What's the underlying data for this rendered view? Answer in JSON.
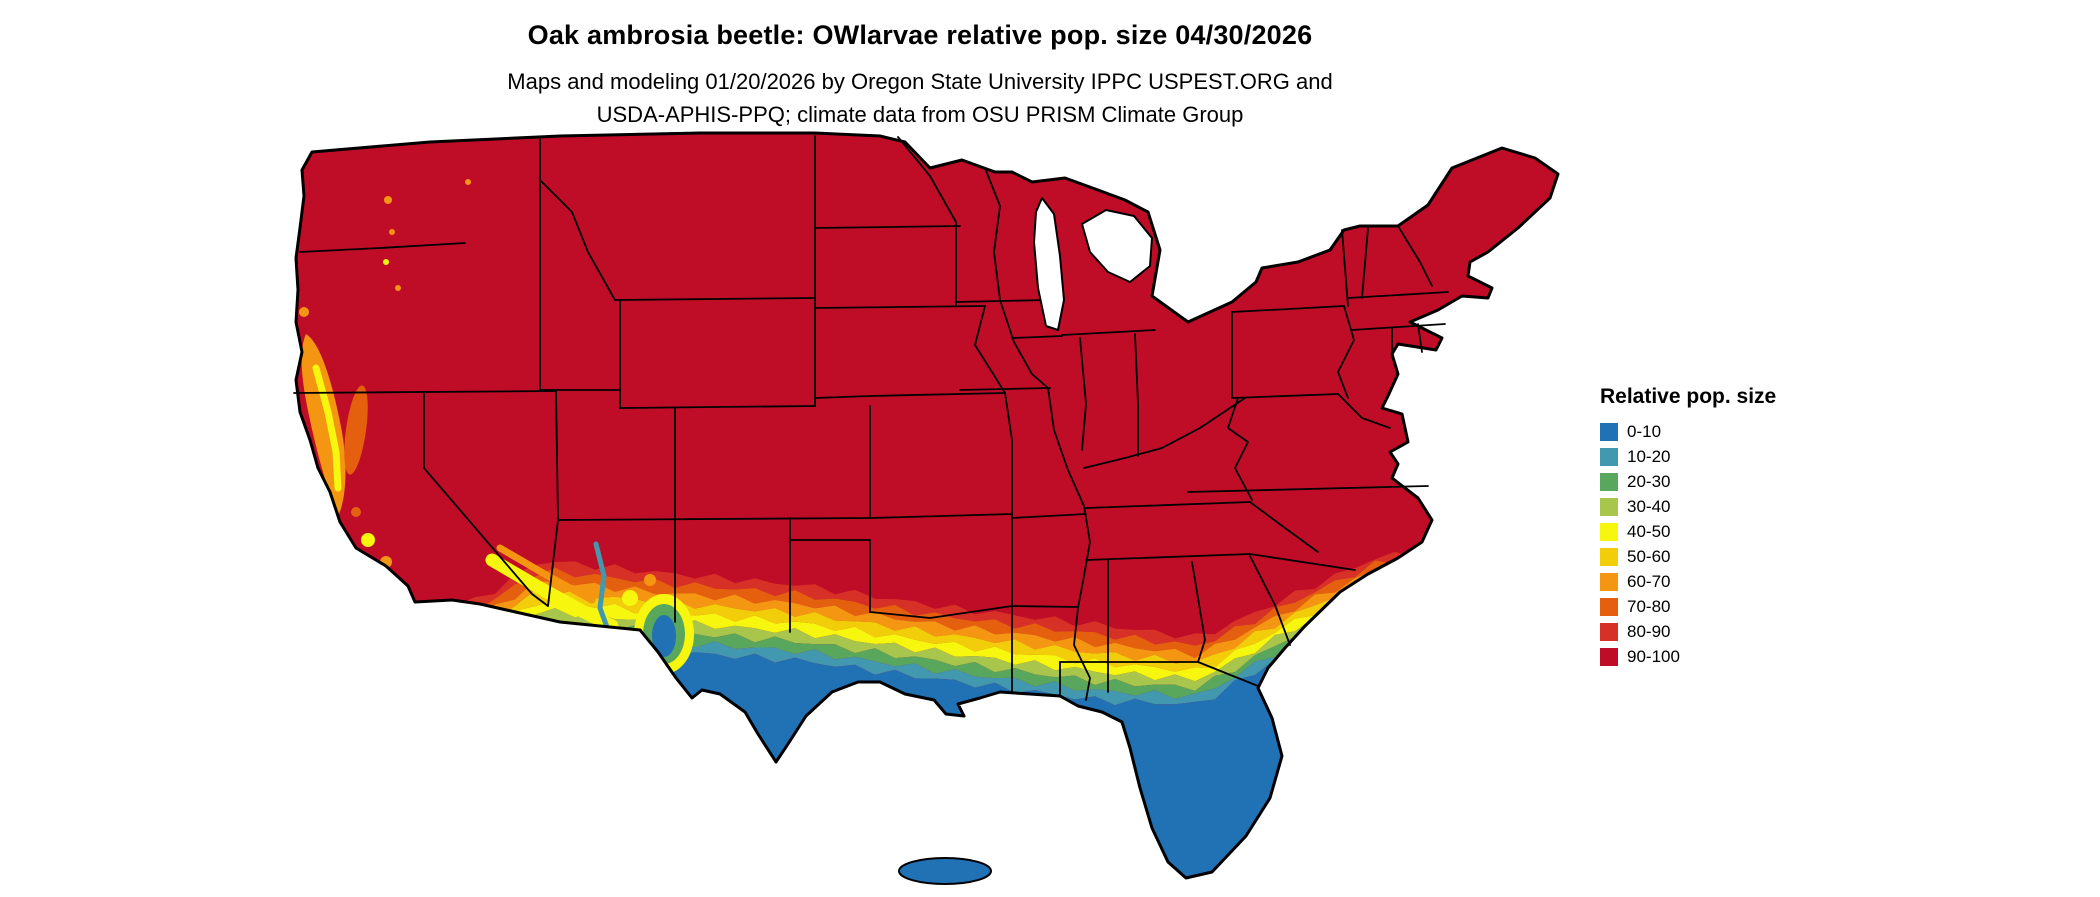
{
  "header": {
    "title": "Oak ambrosia beetle: OWlarvae relative pop. size 04/30/2026",
    "subtitle_line1": "Maps and modeling 01/20/2026 by Oregon State University IPPC USPEST.ORG and",
    "subtitle_line2": "USDA-APHIS-PPQ; climate data from OSU PRISM Climate Group"
  },
  "legend": {
    "title": "Relative pop. size",
    "items": [
      {
        "label": "0-10",
        "color": "#2171b5"
      },
      {
        "label": "10-20",
        "color": "#4198af"
      },
      {
        "label": "20-30",
        "color": "#58a75c"
      },
      {
        "label": "30-40",
        "color": "#a8c64b"
      },
      {
        "label": "40-50",
        "color": "#f6f60e"
      },
      {
        "label": "50-60",
        "color": "#f2ce0a"
      },
      {
        "label": "60-70",
        "color": "#f59613"
      },
      {
        "label": "70-80",
        "color": "#e4600f"
      },
      {
        "label": "80-90",
        "color": "#d73027"
      },
      {
        "label": "90-100",
        "color": "#c00d27"
      }
    ]
  },
  "chart_data": {
    "type": "heatmap",
    "title": "Oak ambrosia beetle: OWlarvae relative pop. size 04/30/2026",
    "legend_title": "Relative pop. size",
    "legend_position": "right",
    "classes": [
      "0-10",
      "10-20",
      "20-30",
      "30-40",
      "40-50",
      "50-60",
      "60-70",
      "70-80",
      "80-90",
      "90-100"
    ],
    "class_colors": [
      "#2171b5",
      "#4198af",
      "#58a75c",
      "#a8c64b",
      "#f6f60e",
      "#f2ce0a",
      "#f59613",
      "#e4600f",
      "#d73027",
      "#c00d27"
    ],
    "region": "conterminous United States with state borders",
    "dominant_class": "90-100",
    "pattern": "Nearly all of the northern and central U.S. is in the 90-100 class (dark red). A banded gradient from 80-90 down to 0-10 runs across the southern tier: southern Texas, the Gulf Coast, and the Florida peninsula are 0-10 (blue), with intermediate orange/yellow/green bands between. Mottled low values also appear along the California coast, Sierra Nevada, southern Arizona/New Mexico highlands, and the Carolina coastal plain."
  }
}
